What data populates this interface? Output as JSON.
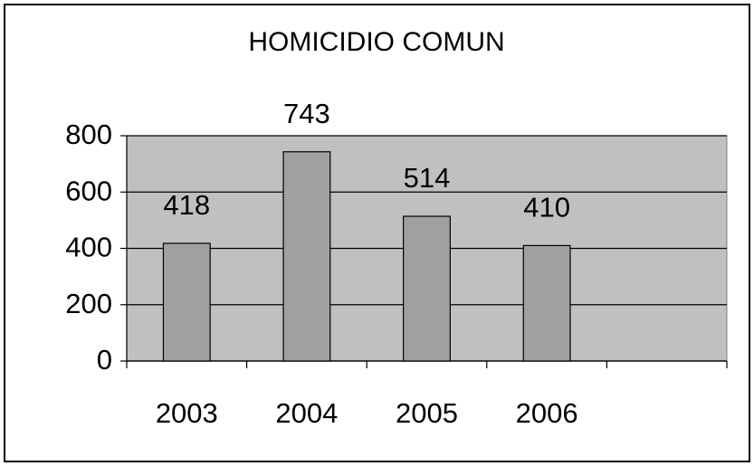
{
  "chart_data": {
    "type": "bar",
    "title": "HOMICIDIO COMUN",
    "categories": [
      "2003",
      "2004",
      "2005",
      "2006",
      null
    ],
    "values": [
      418,
      743,
      514,
      410,
      null
    ],
    "color": "#a0a0a0",
    "plot_background": "#c0c0c0",
    "ylim": [
      0,
      800
    ],
    "yticks": [
      0,
      200,
      400,
      600,
      800
    ],
    "grid": true
  }
}
